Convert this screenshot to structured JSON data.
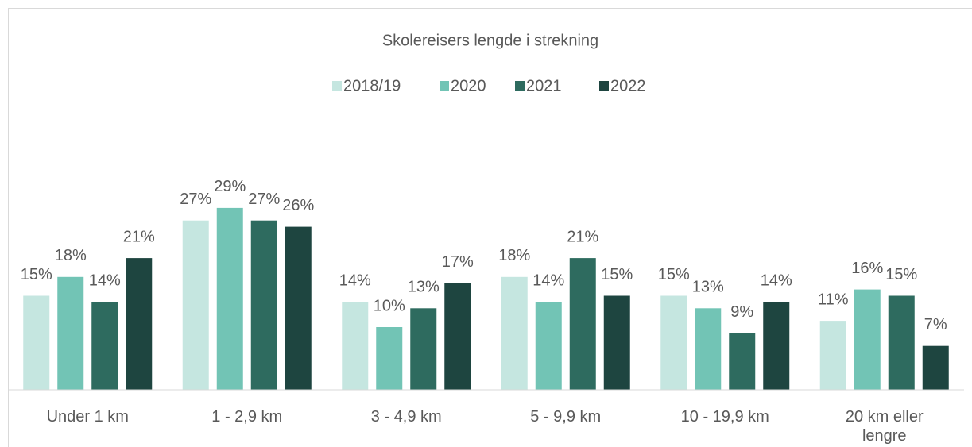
{
  "chart_data": {
    "type": "bar",
    "title": "Skolereisers lengde i strekning",
    "categories": [
      "Under 1 km",
      "1 - 2,9 km",
      "3 - 4,9 km",
      "5 - 9,9 km",
      "10 - 19,9 km",
      "20 km eller lengre"
    ],
    "series": [
      {
        "name": "2018/19",
        "color": "#c5e6e0",
        "values": [
          15,
          27,
          14,
          18,
          15,
          11
        ],
        "value_labels": [
          "15%",
          "27%",
          "14%",
          "18%",
          "15%",
          "11%"
        ]
      },
      {
        "name": "2020",
        "color": "#72c4b5",
        "values": [
          18,
          29,
          10,
          14,
          13,
          16
        ],
        "value_labels": [
          "18%",
          "29%",
          "10%",
          "14%",
          "13%",
          "16%"
        ]
      },
      {
        "name": "2021",
        "color": "#2e6b5f",
        "values": [
          14,
          27,
          13,
          21,
          9,
          15
        ],
        "value_labels": [
          "14%",
          "27%",
          "13%",
          "21%",
          "9%",
          "15%"
        ]
      },
      {
        "name": "2022",
        "color": "#1e4540",
        "values": [
          21,
          26,
          17,
          15,
          14,
          7
        ],
        "value_labels": [
          "21%",
          "26%",
          "17%",
          "15%",
          "14%",
          "7%"
        ]
      }
    ],
    "ylim": [
      0,
      45
    ],
    "legend": "top"
  }
}
